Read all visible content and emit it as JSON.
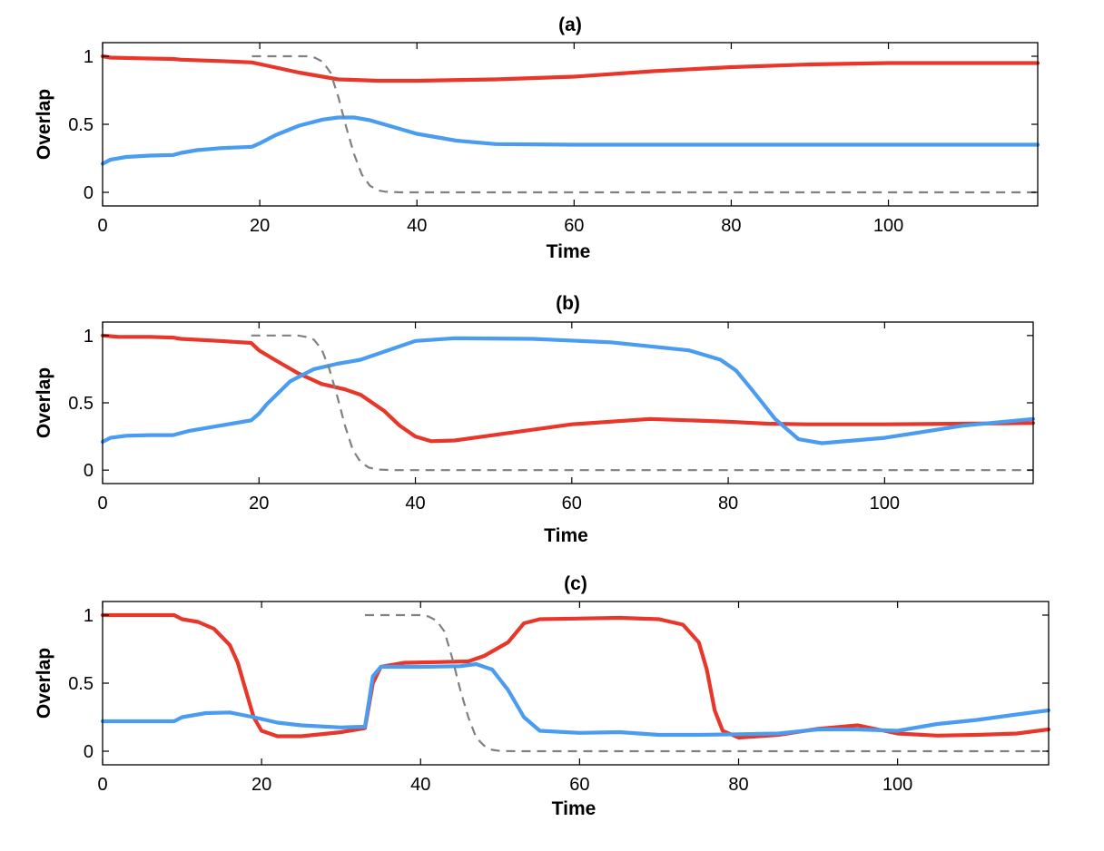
{
  "colors": {
    "red": "#e8372a",
    "blue": "#4a9cf0",
    "dashed": "#808080"
  },
  "chart_data": [
    {
      "type": "line",
      "title": "(a)",
      "xlabel": "Time",
      "ylabel": "Overlap",
      "xlim": [
        0,
        119
      ],
      "ylim": [
        -0.1,
        1.1
      ],
      "xticks": [
        "0",
        "20",
        "40",
        "60",
        "80",
        "100"
      ],
      "xtick_values": [
        0,
        20,
        40,
        60,
        80,
        100
      ],
      "yticks": [
        "0",
        "0.5",
        "1"
      ],
      "ytick_values": [
        0,
        0.5,
        1
      ],
      "series": [
        {
          "name": "red",
          "color": "red",
          "style": "solid",
          "points": [
            [
              0,
              1.0
            ],
            [
              1,
              0.99
            ],
            [
              5,
              0.985
            ],
            [
              9,
              0.98
            ],
            [
              10,
              0.975
            ],
            [
              15,
              0.965
            ],
            [
              19,
              0.955
            ],
            [
              21,
              0.93
            ],
            [
              25,
              0.88
            ],
            [
              28,
              0.85
            ],
            [
              30,
              0.83
            ],
            [
              35,
              0.82
            ],
            [
              40,
              0.82
            ],
            [
              50,
              0.83
            ],
            [
              60,
              0.85
            ],
            [
              70,
              0.89
            ],
            [
              80,
              0.92
            ],
            [
              90,
              0.94
            ],
            [
              100,
              0.95
            ],
            [
              110,
              0.95
            ],
            [
              119,
              0.95
            ]
          ]
        },
        {
          "name": "blue",
          "color": "blue",
          "style": "solid",
          "points": [
            [
              0,
              0.21
            ],
            [
              1,
              0.24
            ],
            [
              3,
              0.26
            ],
            [
              6,
              0.27
            ],
            [
              9,
              0.275
            ],
            [
              10,
              0.29
            ],
            [
              12,
              0.31
            ],
            [
              15,
              0.325
            ],
            [
              19,
              0.335
            ],
            [
              20,
              0.36
            ],
            [
              22,
              0.42
            ],
            [
              25,
              0.49
            ],
            [
              28,
              0.535
            ],
            [
              30,
              0.55
            ],
            [
              32,
              0.55
            ],
            [
              34,
              0.53
            ],
            [
              37,
              0.48
            ],
            [
              40,
              0.43
            ],
            [
              45,
              0.38
            ],
            [
              50,
              0.355
            ],
            [
              60,
              0.35
            ],
            [
              80,
              0.35
            ],
            [
              100,
              0.35
            ],
            [
              119,
              0.35
            ]
          ]
        },
        {
          "name": "dashed",
          "color": "dashed",
          "style": "dashed",
          "points": [
            [
              19,
              1.0
            ],
            [
              26,
              1.0
            ],
            [
              27,
              0.99
            ],
            [
              28,
              0.96
            ],
            [
              29,
              0.88
            ],
            [
              30,
              0.7
            ],
            [
              31,
              0.48
            ],
            [
              32,
              0.28
            ],
            [
              33,
              0.13
            ],
            [
              34,
              0.05
            ],
            [
              35,
              0.015
            ],
            [
              36,
              0.005
            ],
            [
              38,
              0
            ],
            [
              119,
              0
            ]
          ]
        }
      ]
    },
    {
      "type": "line",
      "title": "(b)",
      "xlabel": "Time",
      "ylabel": "Overlap",
      "xlim": [
        0,
        119
      ],
      "ylim": [
        -0.1,
        1.1
      ],
      "xticks": [
        "0",
        "20",
        "40",
        "60",
        "80",
        "100"
      ],
      "xtick_values": [
        0,
        20,
        40,
        60,
        80,
        100
      ],
      "yticks": [
        "0",
        "0.5",
        "1"
      ],
      "ytick_values": [
        0,
        0.5,
        1
      ],
      "series": [
        {
          "name": "red",
          "color": "red",
          "style": "solid",
          "points": [
            [
              0,
              1.0
            ],
            [
              2,
              0.99
            ],
            [
              6,
              0.99
            ],
            [
              9,
              0.985
            ],
            [
              10,
              0.975
            ],
            [
              15,
              0.96
            ],
            [
              19,
              0.945
            ],
            [
              20,
              0.89
            ],
            [
              22,
              0.82
            ],
            [
              25,
              0.72
            ],
            [
              28,
              0.64
            ],
            [
              31,
              0.6
            ],
            [
              33,
              0.56
            ],
            [
              36,
              0.44
            ],
            [
              38,
              0.33
            ],
            [
              40,
              0.25
            ],
            [
              42,
              0.215
            ],
            [
              45,
              0.22
            ],
            [
              50,
              0.26
            ],
            [
              60,
              0.34
            ],
            [
              70,
              0.38
            ],
            [
              80,
              0.36
            ],
            [
              85,
              0.345
            ],
            [
              90,
              0.34
            ],
            [
              100,
              0.34
            ],
            [
              110,
              0.345
            ],
            [
              119,
              0.35
            ]
          ]
        },
        {
          "name": "blue",
          "color": "blue",
          "style": "solid",
          "points": [
            [
              0,
              0.21
            ],
            [
              1,
              0.24
            ],
            [
              3,
              0.255
            ],
            [
              6,
              0.26
            ],
            [
              9,
              0.26
            ],
            [
              11,
              0.29
            ],
            [
              15,
              0.33
            ],
            [
              19,
              0.37
            ],
            [
              20,
              0.42
            ],
            [
              21,
              0.49
            ],
            [
              24,
              0.66
            ],
            [
              27,
              0.75
            ],
            [
              30,
              0.79
            ],
            [
              33,
              0.82
            ],
            [
              36,
              0.88
            ],
            [
              40,
              0.96
            ],
            [
              45,
              0.98
            ],
            [
              55,
              0.975
            ],
            [
              65,
              0.95
            ],
            [
              75,
              0.89
            ],
            [
              79,
              0.82
            ],
            [
              81,
              0.74
            ],
            [
              83,
              0.6
            ],
            [
              86,
              0.38
            ],
            [
              89,
              0.23
            ],
            [
              92,
              0.2
            ],
            [
              100,
              0.24
            ],
            [
              110,
              0.33
            ],
            [
              119,
              0.38
            ]
          ]
        },
        {
          "name": "dashed",
          "color": "dashed",
          "style": "dashed",
          "points": [
            [
              19,
              1.0
            ],
            [
              25,
              1.0
            ],
            [
              26,
              0.99
            ],
            [
              27,
              0.97
            ],
            [
              28,
              0.9
            ],
            [
              29,
              0.75
            ],
            [
              30,
              0.55
            ],
            [
              31,
              0.33
            ],
            [
              32,
              0.15
            ],
            [
              33,
              0.06
            ],
            [
              34,
              0.02
            ],
            [
              35,
              0.005
            ],
            [
              37,
              0
            ],
            [
              119,
              0
            ]
          ]
        }
      ]
    },
    {
      "type": "line",
      "title": "(c)",
      "xlabel": "Time",
      "ylabel": "Overlap",
      "xlim": [
        0,
        119
      ],
      "ylim": [
        -0.1,
        1.1
      ],
      "xticks": [
        "0",
        "20",
        "40",
        "60",
        "80",
        "100"
      ],
      "xtick_values": [
        0,
        20,
        40,
        60,
        80,
        100
      ],
      "yticks": [
        "0",
        "0.5",
        "1"
      ],
      "ytick_values": [
        0,
        0.5,
        1
      ],
      "series": [
        {
          "name": "red",
          "color": "red",
          "style": "solid",
          "points": [
            [
              0,
              1.0
            ],
            [
              9,
              1.0
            ],
            [
              10,
              0.97
            ],
            [
              12,
              0.95
            ],
            [
              14,
              0.9
            ],
            [
              16,
              0.78
            ],
            [
              17,
              0.65
            ],
            [
              18,
              0.45
            ],
            [
              19,
              0.25
            ],
            [
              20,
              0.15
            ],
            [
              22,
              0.11
            ],
            [
              25,
              0.11
            ],
            [
              30,
              0.14
            ],
            [
              33,
              0.17
            ],
            [
              34,
              0.5
            ],
            [
              35,
              0.62
            ],
            [
              38,
              0.65
            ],
            [
              42,
              0.655
            ],
            [
              46,
              0.66
            ],
            [
              48,
              0.7
            ],
            [
              51,
              0.8
            ],
            [
              53,
              0.94
            ],
            [
              55,
              0.97
            ],
            [
              65,
              0.98
            ],
            [
              70,
              0.97
            ],
            [
              73,
              0.93
            ],
            [
              75,
              0.8
            ],
            [
              76,
              0.6
            ],
            [
              77,
              0.3
            ],
            [
              78,
              0.15
            ],
            [
              80,
              0.1
            ],
            [
              85,
              0.12
            ],
            [
              90,
              0.165
            ],
            [
              95,
              0.19
            ],
            [
              100,
              0.13
            ],
            [
              105,
              0.115
            ],
            [
              110,
              0.12
            ],
            [
              115,
              0.13
            ],
            [
              119,
              0.16
            ]
          ]
        },
        {
          "name": "blue",
          "color": "blue",
          "style": "solid",
          "points": [
            [
              0,
              0.22
            ],
            [
              9,
              0.22
            ],
            [
              10,
              0.25
            ],
            [
              13,
              0.28
            ],
            [
              16,
              0.285
            ],
            [
              19,
              0.25
            ],
            [
              22,
              0.21
            ],
            [
              25,
              0.19
            ],
            [
              30,
              0.175
            ],
            [
              33,
              0.18
            ],
            [
              34,
              0.55
            ],
            [
              35,
              0.62
            ],
            [
              40,
              0.62
            ],
            [
              45,
              0.625
            ],
            [
              47,
              0.64
            ],
            [
              49,
              0.6
            ],
            [
              51,
              0.45
            ],
            [
              53,
              0.25
            ],
            [
              55,
              0.15
            ],
            [
              60,
              0.135
            ],
            [
              65,
              0.14
            ],
            [
              70,
              0.12
            ],
            [
              75,
              0.12
            ],
            [
              80,
              0.125
            ],
            [
              85,
              0.13
            ],
            [
              90,
              0.16
            ],
            [
              95,
              0.16
            ],
            [
              100,
              0.15
            ],
            [
              105,
              0.2
            ],
            [
              110,
              0.23
            ],
            [
              115,
              0.27
            ],
            [
              119,
              0.3
            ]
          ]
        },
        {
          "name": "dashed",
          "color": "dashed",
          "style": "dashed",
          "points": [
            [
              33,
              1.0
            ],
            [
              40,
              1.0
            ],
            [
              41,
              0.99
            ],
            [
              42,
              0.96
            ],
            [
              43,
              0.88
            ],
            [
              44,
              0.68
            ],
            [
              45,
              0.45
            ],
            [
              46,
              0.25
            ],
            [
              47,
              0.1
            ],
            [
              48,
              0.04
            ],
            [
              49,
              0.01
            ],
            [
              50,
              0.002
            ],
            [
              52,
              0
            ],
            [
              119,
              0
            ]
          ]
        }
      ]
    }
  ]
}
